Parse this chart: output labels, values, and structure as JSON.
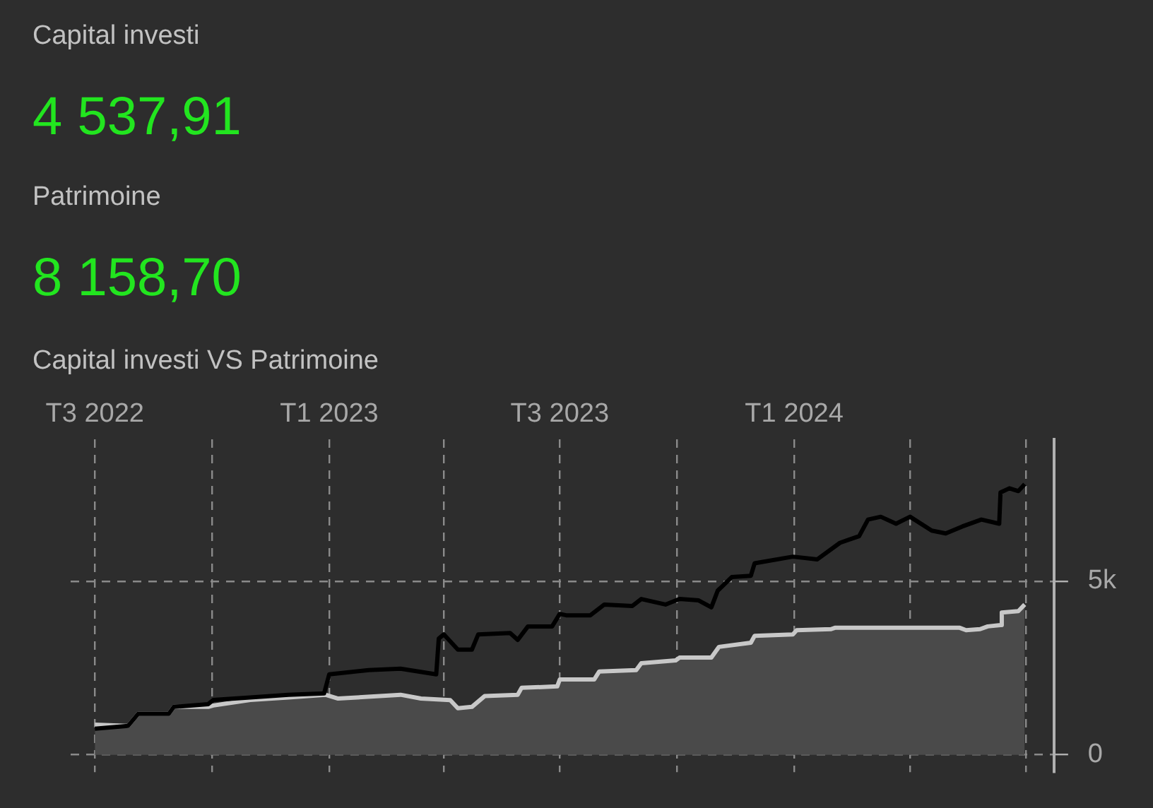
{
  "chart_data": {
    "type": "line",
    "title": "Capital investi VS Patrimoine",
    "annotations": [
      "Capital investi",
      "4 537,91",
      "Patrimoine",
      "8 158,70"
    ],
    "xlim": [
      "2022-06-12",
      "2024-07-23"
    ],
    "xticks": [
      {
        "value": "2022-07-01",
        "label": "T3 2022"
      },
      {
        "value": "2022-10-01",
        "label": null
      },
      {
        "value": "2023-01-01",
        "label": "T1 2023"
      },
      {
        "value": "2023-04-01",
        "label": null
      },
      {
        "value": "2023-07-01",
        "label": "T3 2023"
      },
      {
        "value": "2023-10-01",
        "label": null
      },
      {
        "value": "2024-01-01",
        "label": "T1 2024"
      },
      {
        "value": "2024-04-01",
        "label": null
      },
      {
        "value": "2024-07-01",
        "label": null
      }
    ],
    "ylim": [
      -500,
      9100
    ],
    "yticks": [
      {
        "value": 0,
        "label": "0"
      },
      {
        "value": 5000,
        "label": "5k"
      }
    ],
    "grid": true,
    "legend": false,
    "marker": "none",
    "line_style": "solid",
    "series": [
      {
        "type": "area",
        "color": "#c8c8c8",
        "x": [
          "2022-07-01",
          "2022-07-27",
          "2022-08-04",
          "2022-08-28",
          "2022-09-01",
          "2022-09-28",
          "2022-10-02",
          "2022-10-31",
          "2022-11-30",
          "2022-12-29",
          "2023-01-08",
          "2023-02-26",
          "2023-03-14",
          "2023-04-06",
          "2023-04-12",
          "2023-04-23",
          "2023-05-03",
          "2023-05-29",
          "2023-06-01",
          "2023-06-29",
          "2023-07-01",
          "2023-07-28",
          "2023-08-01",
          "2023-08-30",
          "2023-09-03",
          "2023-09-30",
          "2023-10-03",
          "2023-10-28",
          "2023-11-03",
          "2023-11-28",
          "2023-12-01",
          "2023-12-31",
          "2024-01-03",
          "2024-01-30",
          "2024-02-02",
          "2024-03-28",
          "2024-05-10",
          "2024-05-15",
          "2024-05-26",
          "2024-06-01",
          "2024-06-11",
          "2024-06-12",
          "2024-06-25",
          "2024-06-30"
        ],
        "values": [
          870,
          830,
          1180,
          1180,
          1380,
          1380,
          1420,
          1580,
          1650,
          1730,
          1620,
          1730,
          1620,
          1575,
          1340,
          1380,
          1690,
          1730,
          1930,
          1970,
          2170,
          2170,
          2400,
          2440,
          2640,
          2720,
          2800,
          2800,
          3110,
          3230,
          3430,
          3470,
          3590,
          3620,
          3660,
          3660,
          3660,
          3590,
          3620,
          3700,
          3740,
          4100,
          4140,
          4330
        ]
      },
      {
        "type": "line",
        "color": "#000000",
        "x": [
          "2022-07-01",
          "2022-07-27",
          "2022-08-04",
          "2022-08-28",
          "2022-09-01",
          "2022-09-28",
          "2022-10-02",
          "2022-10-31",
          "2022-11-30",
          "2022-12-28",
          "2023-01-01",
          "2023-02-01",
          "2023-02-26",
          "2023-03-26",
          "2023-03-28",
          "2023-04-01",
          "2023-04-12",
          "2023-04-23",
          "2023-04-28",
          "2023-05-23",
          "2023-05-29",
          "2023-06-06",
          "2023-06-25",
          "2023-07-01",
          "2023-07-06",
          "2023-07-25",
          "2023-08-05",
          "2023-08-27",
          "2023-09-03",
          "2023-09-22",
          "2023-10-03",
          "2023-10-18",
          "2023-10-28",
          "2023-11-02",
          "2023-11-13",
          "2023-11-28",
          "2023-12-01",
          "2023-12-31",
          "2024-01-19",
          "2024-02-06",
          "2024-02-21",
          "2024-02-28",
          "2024-03-09",
          "2024-03-21",
          "2024-04-01",
          "2024-04-18",
          "2024-04-29",
          "2024-05-12",
          "2024-05-27",
          "2024-06-10",
          "2024-06-11",
          "2024-06-18",
          "2024-06-25",
          "2024-06-30"
        ],
        "values": [
          750,
          830,
          1180,
          1180,
          1380,
          1460,
          1580,
          1650,
          1730,
          1770,
          2320,
          2440,
          2480,
          2320,
          3350,
          3470,
          3030,
          3030,
          3470,
          3510,
          3310,
          3700,
          3700,
          4060,
          4020,
          4020,
          4330,
          4290,
          4490,
          4330,
          4490,
          4450,
          4250,
          4730,
          5120,
          5160,
          5520,
          5710,
          5630,
          6110,
          6300,
          6780,
          6860,
          6660,
          6860,
          6460,
          6380,
          6580,
          6780,
          6660,
          7560,
          7680,
          7600,
          7800
        ]
      }
    ]
  }
}
